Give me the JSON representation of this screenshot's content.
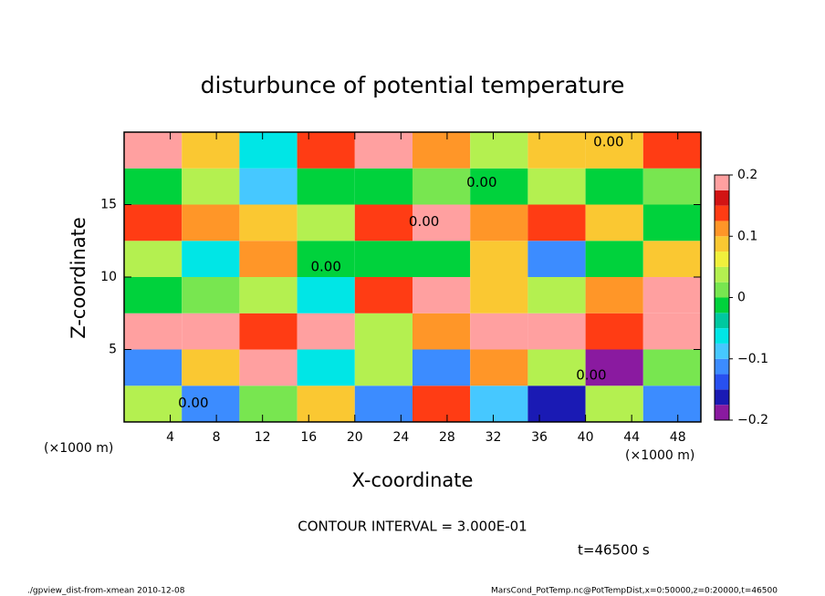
{
  "chart_data": {
    "type": "heatmap",
    "title": "disturbunce of potential temperature",
    "x_label": "X-coordinate",
    "y_label": "Z-coordinate",
    "x_unit": "(×1000 m)",
    "x_unit_right": "(×1000 m)",
    "contour_interval": "CONTOUR INTERVAL = 3.000E-01",
    "time_label": "t=46500 s",
    "footer_left": "./gpview_dist-from-xmean  2010-12-08",
    "footer_right": "MarsCond_PotTemp.nc@PotTempDist,x=0:50000,z=0:20000,t=46500",
    "x": [
      2.5,
      7.5,
      12.5,
      17.5,
      22.5,
      27.5,
      32.5,
      37.5,
      42.5,
      47.5
    ],
    "y": [
      1.25,
      3.75,
      6.25,
      8.75,
      11.25,
      13.75,
      16.25,
      18.75
    ],
    "z": [
      [
        0.05,
        -0.12,
        0.02,
        0.1,
        -0.1,
        0.15,
        -0.08,
        -0.15,
        0.03,
        -0.1
      ],
      [
        -0.1,
        0.08,
        0.2,
        -0.05,
        0.03,
        -0.12,
        0.12,
        0.05,
        -0.18,
        0.02
      ],
      [
        0.2,
        0.18,
        0.15,
        0.2,
        0.05,
        0.12,
        0.2,
        0.18,
        0.15,
        0.2
      ],
      [
        0.0,
        0.02,
        0.05,
        -0.05,
        0.15,
        0.2,
        0.1,
        0.05,
        0.12,
        0.18
      ],
      [
        0.05,
        -0.05,
        0.12,
        0.0,
        0.0,
        -0.02,
        0.08,
        -0.1,
        0.0,
        0.1
      ],
      [
        0.15,
        0.12,
        0.1,
        0.05,
        0.15,
        0.18,
        0.12,
        0.14,
        0.1,
        0.0
      ],
      [
        0.0,
        0.05,
        -0.08,
        0.0,
        0.0,
        0.02,
        0.0,
        0.05,
        0.0,
        0.02
      ],
      [
        0.2,
        0.1,
        -0.05,
        0.15,
        0.18,
        0.12,
        0.05,
        0.1,
        0.1,
        0.15
      ]
    ],
    "annotations": [
      {
        "text": "0.00",
        "x": 17.5,
        "y": 10.7
      },
      {
        "text": "0.00",
        "x": 26,
        "y": 13.8
      },
      {
        "text": "0.00",
        "x": 31,
        "y": 16.5
      },
      {
        "text": "0.00",
        "x": 42,
        "y": 19.3
      },
      {
        "text": "0.00",
        "x": 40.5,
        "y": 3.2
      },
      {
        "text": "0.00",
        "x": 6,
        "y": 1.3
      }
    ],
    "xlim": [
      0,
      50
    ],
    "ylim": [
      0,
      20
    ],
    "xticks": [
      4,
      8,
      12,
      16,
      20,
      24,
      28,
      32,
      36,
      40,
      44,
      48
    ],
    "yticks": [
      5,
      10,
      15
    ],
    "clim": [
      -0.2,
      0.2
    ],
    "cticks": [
      {
        "value": -0.2,
        "label": "−0.2"
      },
      {
        "value": -0.1,
        "label": "−0.1"
      },
      0,
      0.1,
      0.2
    ],
    "levels": [
      -0.2,
      -0.175,
      -0.15,
      -0.125,
      -0.1,
      -0.075,
      -0.05,
      -0.025,
      0,
      0.025,
      0.05,
      0.075,
      0.1,
      0.125,
      0.15,
      0.175,
      0.2
    ],
    "colors": [
      "#8a1aa0",
      "#1a1ab4",
      "#2850f0",
      "#3c8cff",
      "#46c8ff",
      "#00e6e6",
      "#00c8a0",
      "#00d23c",
      "#78e650",
      "#b4f050",
      "#f0f03c",
      "#fac832",
      "#ff9628",
      "#ff3c14",
      "#d21414",
      "#ffa0a0"
    ]
  }
}
